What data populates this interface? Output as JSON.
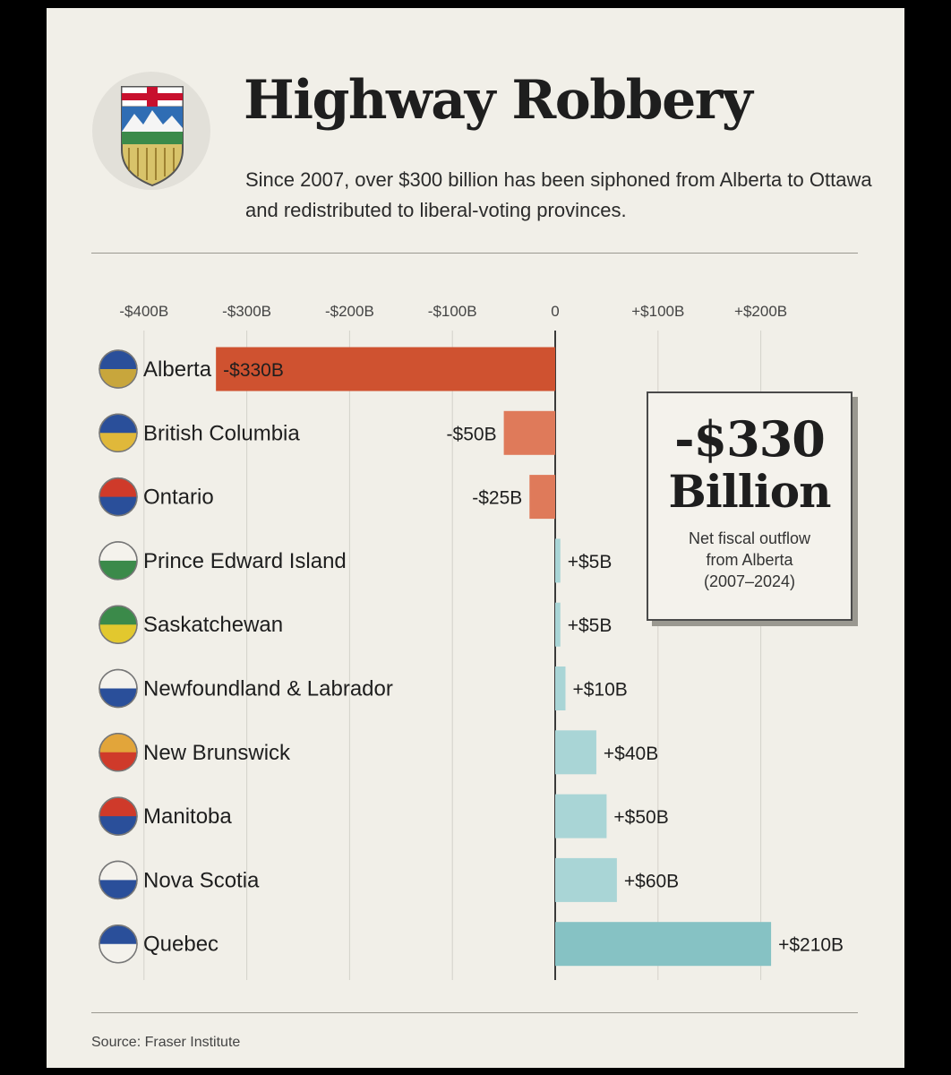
{
  "header": {
    "title": "Highway Robbery",
    "subtitle": "Since 2007, over $300 billion has been siphoned from Alberta to Ottawa and redistributed to liberal-voting provinces."
  },
  "chart_data": {
    "type": "bar",
    "orientation": "horizontal",
    "title": "",
    "xlabel": "",
    "ylabel": "",
    "xlim": [
      -400,
      200
    ],
    "x_ticks": [
      -400,
      -300,
      -200,
      -100,
      0,
      100,
      200
    ],
    "x_tick_labels": [
      "-$400B",
      "-$300B",
      "-$200B",
      "-$100B",
      "0",
      "+$100B",
      "+$200B"
    ],
    "categories": [
      "Alberta",
      "British Columbia",
      "Ontario",
      "Prince Edward Island",
      "Saskatchewan",
      "Newfoundland & Labrador",
      "New Brunswick",
      "Manitoba",
      "Nova Scotia",
      "Quebec"
    ],
    "values": [
      -330,
      -50,
      -25,
      5,
      5,
      10,
      40,
      50,
      60,
      210
    ],
    "value_labels": [
      "-$330B",
      "-$50B",
      "-$25B",
      "+$5B",
      "+$5B",
      "+$10B",
      "+$40B",
      "+$50B",
      "+$60B",
      "+$210B"
    ],
    "icons": [
      "alberta-flag-icon",
      "british-columbia-flag-icon",
      "ontario-flag-icon",
      "prince-edward-island-flag-icon",
      "saskatchewan-flag-icon",
      "newfoundland-labrador-flag-icon",
      "new-brunswick-flag-icon",
      "manitoba-flag-icon",
      "nova-scotia-flag-icon",
      "quebec-flag-icon"
    ],
    "grid": true,
    "colors": {
      "alberta": "#cf5230",
      "negative": "#df7a5a",
      "positive": "#a9d5d6",
      "quebec": "#86c2c4"
    }
  },
  "callout": {
    "value": "-$330",
    "unit": "Billion",
    "caption": "Net fiscal outflow\nfrom Alberta\n(2007–2024)"
  },
  "footer": {
    "source": "Source: Fraser Institute"
  }
}
